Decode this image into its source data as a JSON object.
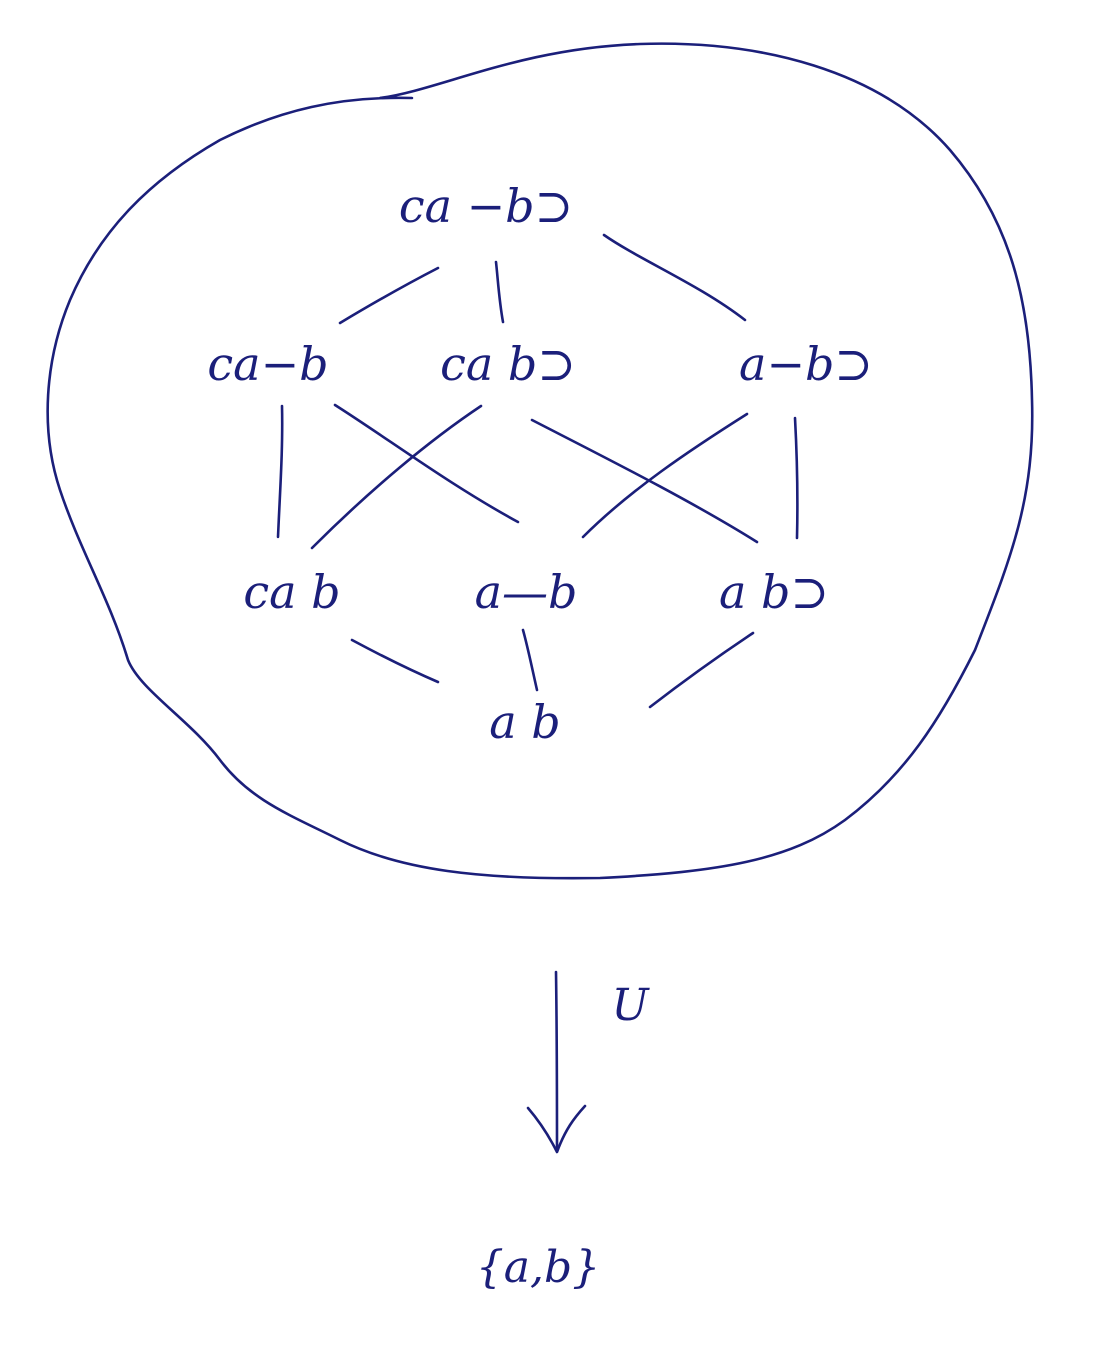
{
  "ink_color": "#1b1f7a",
  "nodes": {
    "top": "ca −b⊃",
    "mid_left": "ca−b",
    "mid_center": "ca  b⊃",
    "mid_right": "a−b⊃",
    "low_left": "ca  b",
    "low_center": "a—b",
    "low_right": "a  b⊃",
    "bottom": "a  b"
  },
  "arrow_label": "U",
  "target": "{a,b}"
}
